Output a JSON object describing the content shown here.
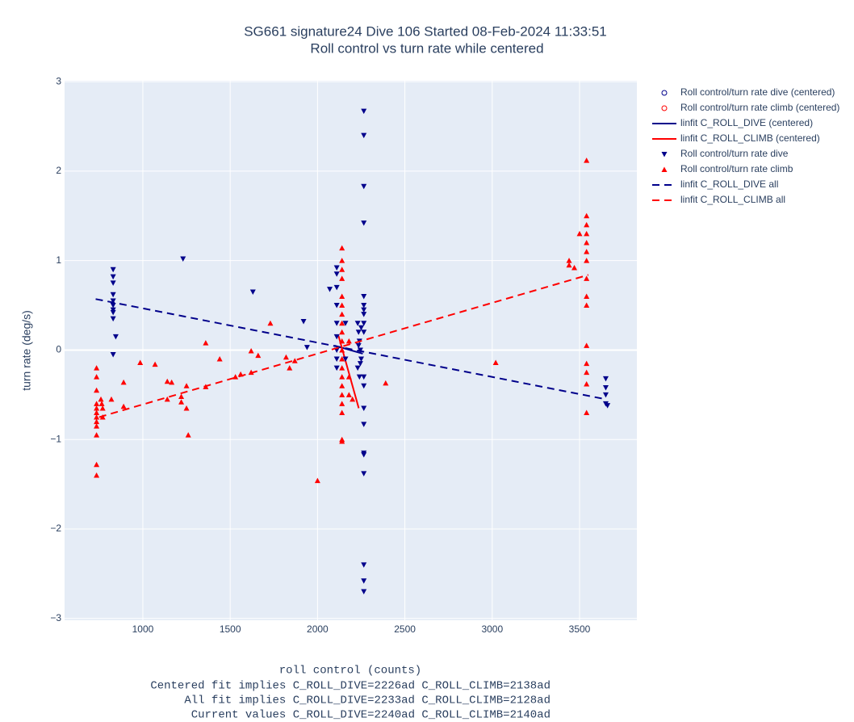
{
  "chart_data": {
    "type": "scatter",
    "title": "SG661 signature24 Dive 106 Started 08-Feb-2024 11:33:51",
    "subtitle": "Roll control vs turn rate while centered",
    "x_label": "roll control (counts)",
    "y_label": "turn rate (deg/s)",
    "annotations": [
      "Centered fit implies C_ROLL_DIVE=2226ad C_ROLL_CLIMB=2138ad",
      "All fit implies C_ROLL_DIVE=2233ad C_ROLL_CLIMB=2128ad",
      "Current values C_ROLL_DIVE=2240ad C_ROLL_CLIMB=2140ad"
    ],
    "xlim": [
      552,
      3828
    ],
    "ylim": [
      -3.02,
      3.01
    ],
    "xticks": [
      1000,
      1500,
      2000,
      2500,
      3000,
      3500
    ],
    "yticks": [
      {
        "value": -3,
        "label": "−3"
      },
      {
        "value": -2,
        "label": "−2"
      },
      {
        "value": -1,
        "label": "−1"
      },
      0,
      1,
      2,
      3
    ],
    "grid": true,
    "legend": "right",
    "series": [
      {
        "name": "Roll control/turn rate dive (centered)",
        "color": "#00008b",
        "marker": "circle-open",
        "x": [],
        "values": []
      },
      {
        "name": "Roll control/turn rate climb (centered)",
        "color": "#ff0000",
        "marker": "circle-open",
        "x": [],
        "values": []
      },
      {
        "name": "linfit C_ROLL_DIVE (centered)",
        "color": "#00008b",
        "line": "solid",
        "x": [
          2097,
          2259
        ],
        "values": [
          0.05,
          -0.04
        ]
      },
      {
        "name": "linfit C_ROLL_CLIMB (centered)",
        "color": "#ff0000",
        "line": "solid",
        "x": [
          2120,
          2236
        ],
        "values": [
          0.16,
          -0.65
        ]
      },
      {
        "name": "Roll control/turn rate dive",
        "color": "#00008b",
        "marker": "triangle-down",
        "x": [
          830,
          830,
          830,
          830,
          830,
          830,
          830,
          830,
          830,
          830,
          845,
          1230,
          1630,
          1920,
          1940,
          2070,
          2110,
          2110,
          2110,
          2110,
          2110,
          2110,
          2110,
          2110,
          2110,
          2160,
          2160,
          2230,
          2235,
          2240,
          2245,
          2250,
          2230,
          2240,
          2250,
          2235,
          2245,
          2265,
          2265,
          2265,
          2265,
          2265,
          2265,
          2265,
          2265,
          2265,
          2265,
          2265,
          2265,
          2265,
          2265,
          2265,
          2265,
          2265,
          2265,
          2265,
          2265,
          3650,
          3650,
          3650,
          3650,
          3660
        ],
        "values": [
          0.9,
          0.82,
          0.75,
          0.62,
          0.55,
          0.5,
          0.45,
          0.42,
          0.35,
          -0.05,
          0.15,
          1.02,
          0.65,
          0.32,
          0.03,
          0.68,
          0.92,
          0.85,
          0.7,
          0.5,
          0.3,
          0.15,
          0.0,
          -0.1,
          -0.2,
          0.3,
          -0.1,
          0.3,
          0.2,
          0.1,
          0.0,
          -0.1,
          -0.2,
          -0.3,
          0.25,
          0.05,
          -0.15,
          2.67,
          2.4,
          1.83,
          1.42,
          0.6,
          0.5,
          0.45,
          0.4,
          0.3,
          0.2,
          -0.3,
          -0.4,
          -0.65,
          -0.83,
          -1.15,
          -1.17,
          -1.38,
          -2.4,
          -2.58,
          -2.7,
          -0.32,
          -0.42,
          -0.5,
          -0.6,
          -0.62
        ]
      },
      {
        "name": "Roll control/turn rate climb",
        "color": "#ff0000",
        "marker": "triangle-up",
        "x": [
          735,
          735,
          735,
          735,
          735,
          735,
          735,
          735,
          735,
          735,
          735,
          735,
          760,
          765,
          770,
          770,
          820,
          890,
          890,
          985,
          1070,
          1140,
          1140,
          1165,
          1220,
          1220,
          1250,
          1250,
          1260,
          1360,
          1360,
          1440,
          1530,
          1560,
          1620,
          1620,
          1660,
          1730,
          1820,
          1840,
          1870,
          2000,
          2140,
          2140,
          2140,
          2140,
          2140,
          2140,
          2140,
          2140,
          2140,
          2140,
          2140,
          2140,
          2140,
          2140,
          2140,
          2140,
          2140,
          2140,
          2140,
          2140,
          2180,
          2180,
          2180,
          2200,
          2390,
          3020,
          3440,
          3440,
          3470,
          3500,
          3540,
          3540,
          3540,
          3540,
          3540,
          3540,
          3540,
          3540,
          3540,
          3540,
          3540,
          3540,
          3540,
          3540,
          3540
        ],
        "values": [
          -0.2,
          -0.3,
          -0.45,
          -0.6,
          -0.65,
          -0.7,
          -0.75,
          -0.8,
          -0.85,
          -0.95,
          -1.28,
          -1.4,
          -0.55,
          -0.6,
          -0.65,
          -0.75,
          -0.55,
          -0.36,
          -0.63,
          -0.14,
          -0.16,
          -0.35,
          -0.55,
          -0.36,
          -0.52,
          -0.58,
          -0.4,
          -0.65,
          -0.95,
          0.08,
          -0.41,
          -0.1,
          -0.3,
          -0.27,
          -0.25,
          -0.01,
          -0.06,
          0.3,
          -0.08,
          -0.2,
          -0.12,
          -1.46,
          1.14,
          1.0,
          0.9,
          0.8,
          0.6,
          0.5,
          0.4,
          0.3,
          0.2,
          0.1,
          0,
          -0.1,
          -0.2,
          -0.3,
          -0.4,
          -0.5,
          -0.6,
          -0.7,
          -1.0,
          -1.02,
          -0.5,
          -0.3,
          0.1,
          -0.55,
          -0.37,
          -0.14,
          1.0,
          0.95,
          0.92,
          1.3,
          2.12,
          1.5,
          1.4,
          1.3,
          1.2,
          1.1,
          1.0,
          0.8,
          0.6,
          0.5,
          0.05,
          -0.15,
          -0.25,
          -0.38,
          -0.7
        ]
      },
      {
        "name": "linfit C_ROLL_DIVE all",
        "color": "#00008b",
        "line": "dash",
        "x": [
          730,
          3650
        ],
        "values": [
          0.57,
          -0.55
        ]
      },
      {
        "name": "linfit C_ROLL_CLIMB all",
        "color": "#ff0000",
        "line": "dash",
        "x": [
          750,
          3550
        ],
        "values": [
          -0.75,
          0.84
        ]
      }
    ]
  }
}
